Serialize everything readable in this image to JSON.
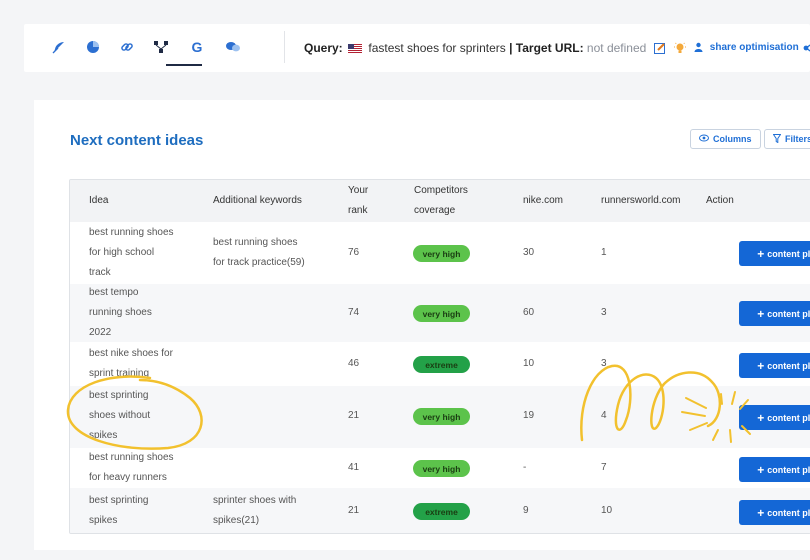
{
  "toolbar": {
    "tools": [
      {
        "name": "feather-icon",
        "color": "#2c6fd1"
      },
      {
        "name": "pie-chart-icon",
        "color": "#2c6fd1"
      },
      {
        "name": "link-icon",
        "color": "#2c6fd1"
      },
      {
        "name": "network-icon",
        "color": "#1f2a44"
      },
      {
        "name": "google-icon",
        "color": "#2c6fd1"
      },
      {
        "name": "chat-icon",
        "color": "#2c6fd1"
      }
    ],
    "query_label": "Query:",
    "query_value": "fastest shoes for sprinters",
    "target_label": "| Target URL:",
    "target_value": "not defined",
    "share_label": "share optimisation"
  },
  "panel": {
    "title": "Next content ideas",
    "columns_label": "Columns",
    "filters_label": "Filters"
  },
  "table": {
    "headers": {
      "idea": "Idea",
      "keywords": "Additional keywords",
      "rank_1": "Your",
      "rank_2": "rank",
      "coverage_1": "Competitors",
      "coverage_2": "coverage",
      "nike": "nike.com",
      "rw": "runnersworld.com",
      "action": "Action"
    },
    "action_label": "content plan",
    "rows": [
      {
        "idea": [
          "best running shoes",
          "for high school",
          "track"
        ],
        "keywords": [
          "best running shoes",
          "for track practice(59)"
        ],
        "rank": "76",
        "coverage": "very high",
        "nike": "30",
        "rw": "1"
      },
      {
        "idea": [
          "best tempo",
          "running shoes",
          "2022"
        ],
        "keywords": [],
        "rank": "74",
        "coverage": "very high",
        "nike": "60",
        "rw": "3"
      },
      {
        "idea": [
          "best nike shoes for",
          "sprint training"
        ],
        "keywords": [],
        "rank": "46",
        "coverage": "extreme",
        "nike": "10",
        "rw": "3"
      },
      {
        "idea": [
          "best sprinting",
          "shoes without",
          "spikes"
        ],
        "keywords": [],
        "rank": "21",
        "coverage": "very high",
        "nike": "19",
        "rw": "4"
      },
      {
        "idea": [
          "best running shoes",
          "for heavy runners"
        ],
        "keywords": [],
        "rank": "41",
        "coverage": "very high",
        "nike": "-",
        "rw": "7"
      },
      {
        "idea": [
          "best sprinting",
          "spikes"
        ],
        "keywords": [
          "sprinter shoes with",
          "spikes(21)"
        ],
        "rank": "21",
        "coverage": "extreme",
        "nike": "9",
        "rw": "10"
      }
    ]
  },
  "colors": {
    "accent": "#1e6dbf",
    "button": "#1467d6",
    "very_high": "#5cc34b",
    "extreme": "#23a148",
    "highlight": "#f2c12e"
  }
}
